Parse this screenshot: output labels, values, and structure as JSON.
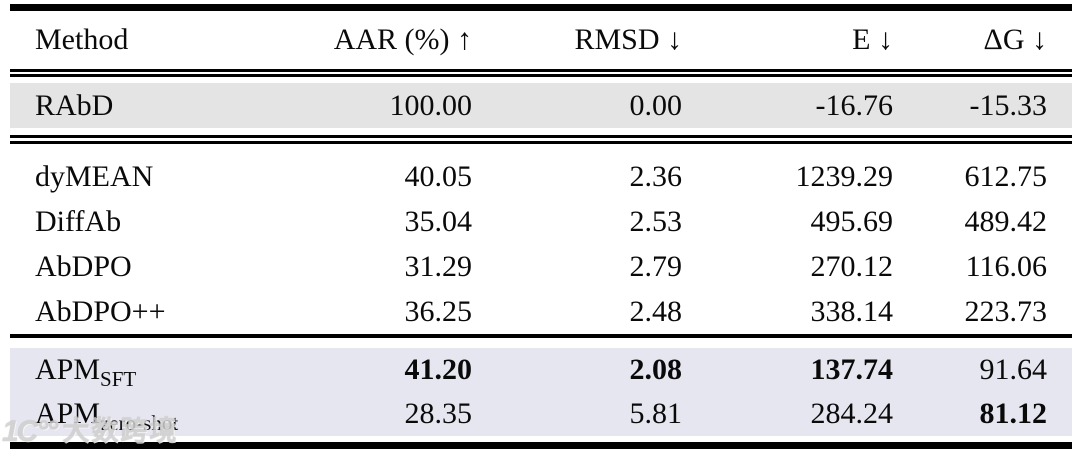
{
  "header": {
    "columns": [
      "Method",
      "AAR (%) ↑",
      "RMSD ↓",
      "E ↓",
      "ΔG ↓"
    ]
  },
  "reference": {
    "method": "RAbD",
    "aar": "100.00",
    "rmsd": "0.00",
    "e": "-16.76",
    "dg": "-15.33"
  },
  "baselines": [
    {
      "method": "dyMEAN",
      "aar": "40.05",
      "rmsd": "2.36",
      "e": "1239.29",
      "dg": "612.75"
    },
    {
      "method": "DiffAb",
      "aar": "35.04",
      "rmsd": "2.53",
      "e": "495.69",
      "dg": "489.42"
    },
    {
      "method": "AbDPO",
      "aar": "31.29",
      "rmsd": "2.79",
      "e": "270.12",
      "dg": "116.06"
    },
    {
      "method": "AbDPO++",
      "aar": "36.25",
      "rmsd": "2.48",
      "e": "338.14",
      "dg": "223.73"
    }
  ],
  "ours": [
    {
      "method_base": "APM",
      "method_sub": "SFT",
      "aar": "41.20",
      "rmsd": "2.08",
      "e": "137.74",
      "dg": "91.64"
    },
    {
      "method_base": "APM",
      "method_sub": "zero-shot",
      "aar": "28.35",
      "rmsd": "5.81",
      "e": "284.24",
      "dg": "81.12"
    }
  ],
  "colors": {
    "reference_row_bg": "#e4e4e4",
    "ours_row_bg": "#e6e6f0",
    "rule_color": "#000000"
  },
  "watermark": {
    "logo": "1C°°",
    "text": "大数跨境"
  }
}
